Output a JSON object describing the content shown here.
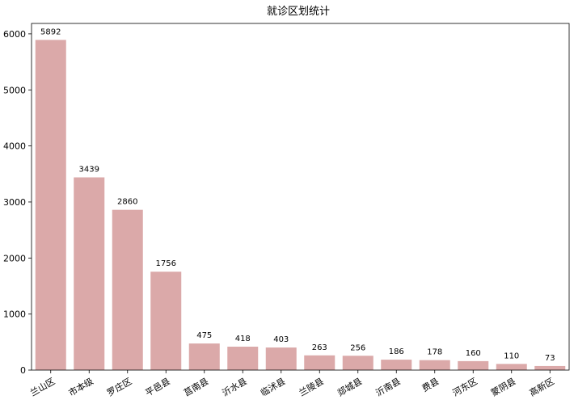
{
  "chart_data": {
    "type": "bar",
    "title": "就诊区划统计",
    "xlabel": "",
    "ylabel": "",
    "categories": [
      "兰山区",
      "市本级",
      "罗庄区",
      "平邑县",
      "莒南县",
      "沂水县",
      "临沭县",
      "兰陵县",
      "郯城县",
      "沂南县",
      "费县",
      "河东区",
      "蒙阴县",
      "高新区"
    ],
    "values": [
      5892,
      3439,
      2860,
      1756,
      475,
      418,
      403,
      263,
      256,
      186,
      178,
      160,
      110,
      73
    ],
    "data_labels": [
      "5892",
      "3439",
      "2860",
      "1756",
      "475",
      "418",
      "403",
      "263",
      "256",
      "186",
      "178",
      "160",
      "110",
      "73"
    ],
    "ylim": [
      0,
      6186
    ],
    "yticks": [
      0,
      1000,
      2000,
      3000,
      4000,
      5000,
      6000
    ],
    "ytick_labels": [
      "0",
      "1000",
      "2000",
      "3000",
      "4000",
      "5000",
      "6000"
    ],
    "grid": false,
    "legend": "none",
    "bar_color": "#dba9a9",
    "xtick_rotation": -30
  }
}
